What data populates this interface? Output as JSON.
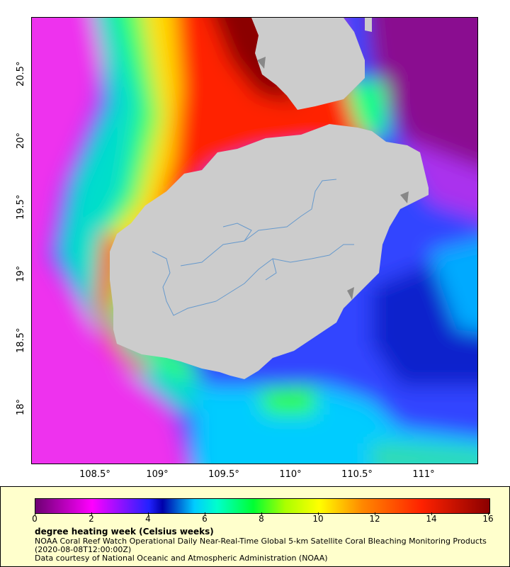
{
  "map": {
    "lat_labels": [
      "20.5°",
      "20°",
      "19.5°",
      "19°",
      "18.5°",
      "18°"
    ],
    "lon_labels": [
      "108.5°",
      "109°",
      "109.5°",
      "110°",
      "110.5°",
      "111°"
    ],
    "colors": {
      "land": "#cccccc",
      "river": "#6699cc",
      "coast_shadow": "#888888"
    }
  },
  "legend": {
    "ticks": [
      "0",
      "2",
      "4",
      "6",
      "8",
      "10",
      "12",
      "14",
      "16"
    ],
    "title": "degree heating week (Celsius weeks)",
    "line1": "NOAA Coral Reef Watch Operational Daily Near-Real-Time Global 5-km Satellite Coral Bleaching Monitoring Products",
    "line2": "(2020-08-08T12:00:00Z)",
    "line3": "Data courtesy of National Oceanic and Atmospheric Administration (NOAA)"
  }
}
